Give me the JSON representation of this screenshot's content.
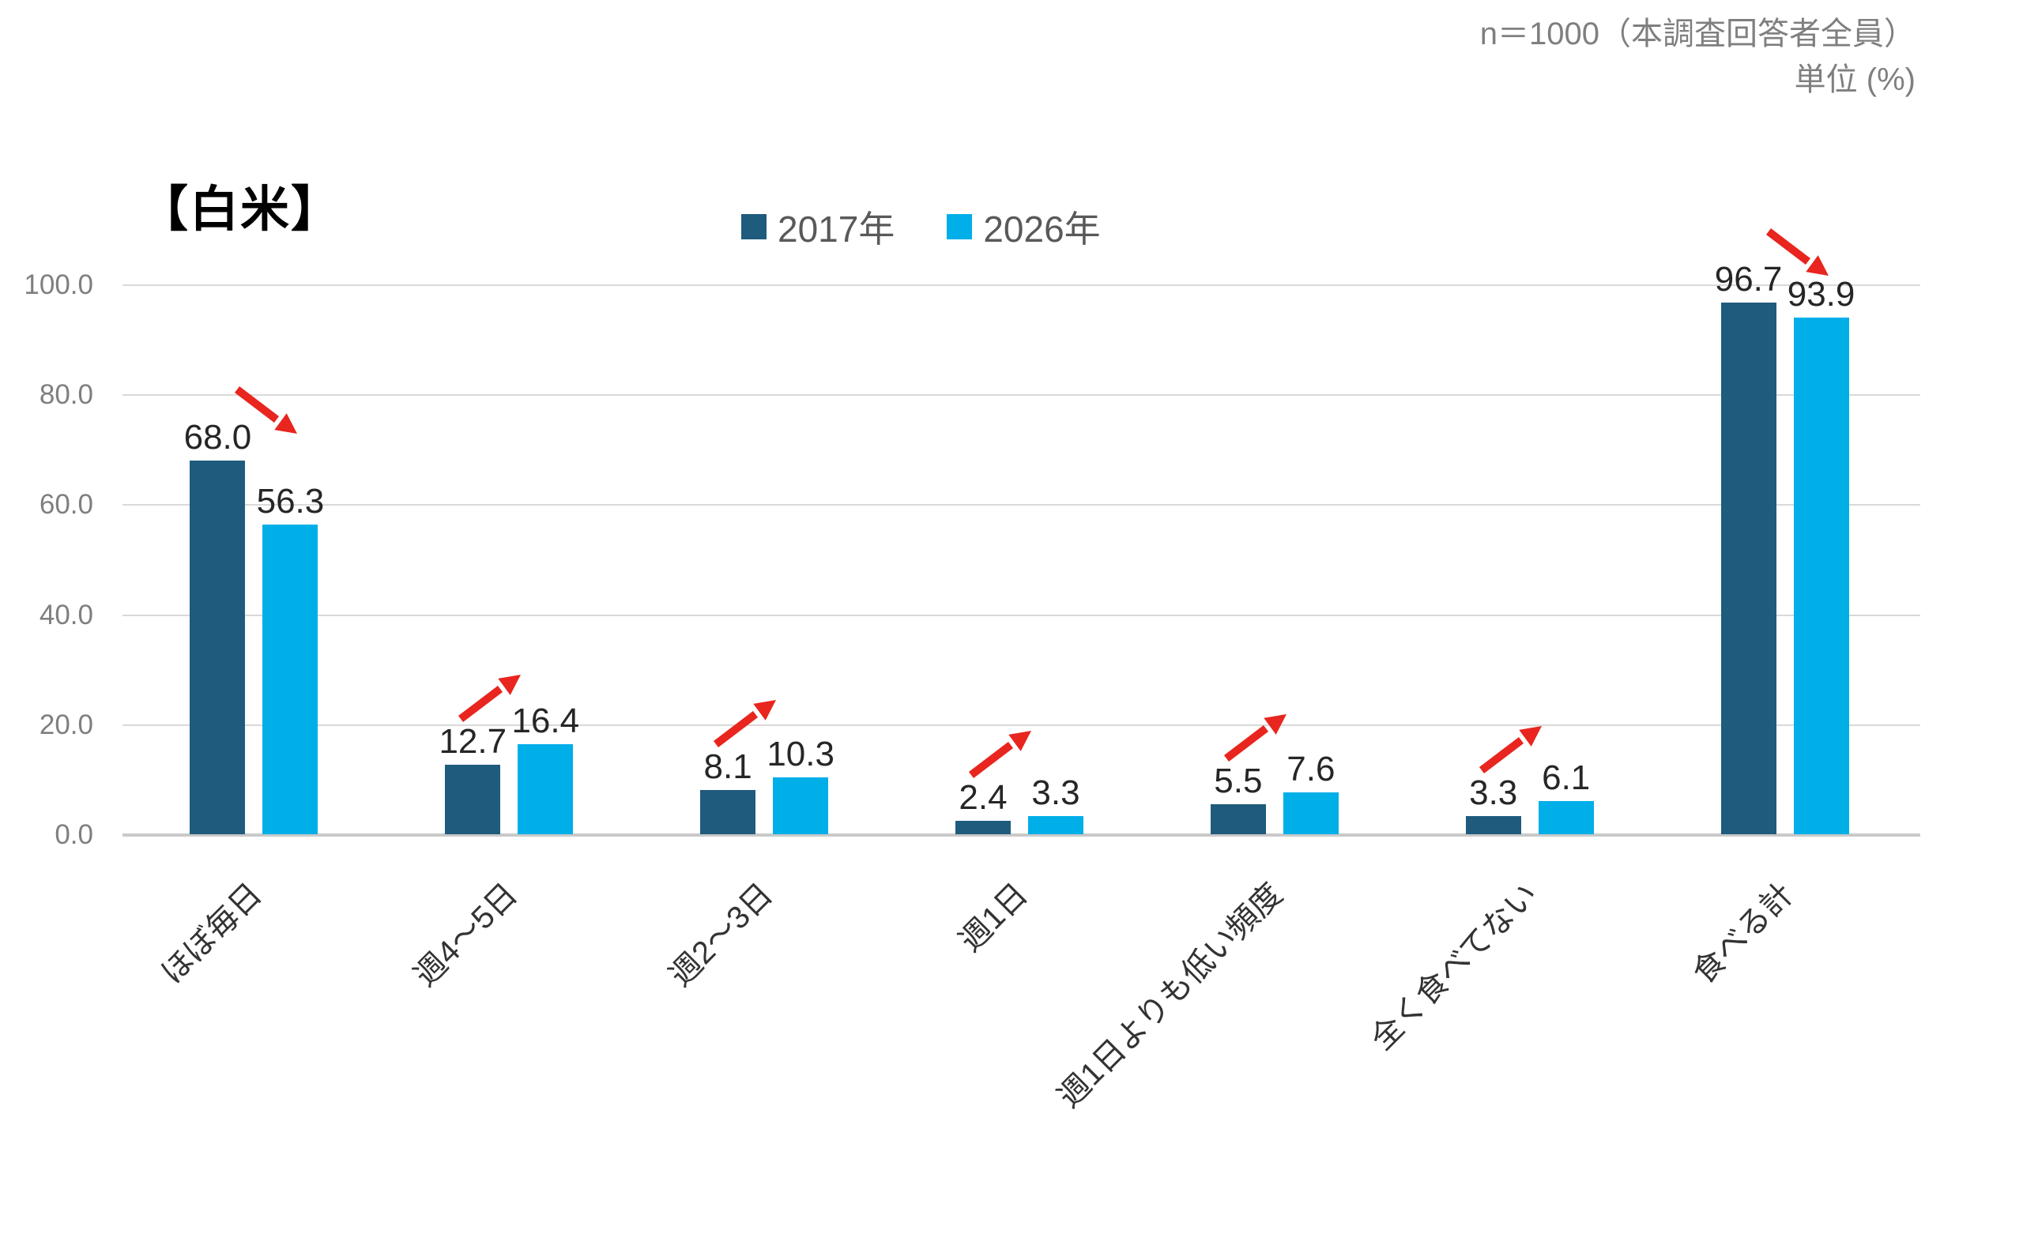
{
  "note": {
    "line1": "n＝1000（本調査回答者全員）",
    "line2": "単位 (%)"
  },
  "chart_data": {
    "type": "bar",
    "title": "【白米】",
    "sample_note": "n＝1000（本調査回答者全員）",
    "unit_label": "単位 (%)",
    "categories": [
      "ほぼ毎日",
      "週4～5日",
      "週2～3日",
      "週1日",
      "週1日よりも低い頻度",
      "全く食べてない",
      "食べる計"
    ],
    "series": [
      {
        "name": "2017年",
        "color": "#1E5B7D",
        "values": [
          68.0,
          12.7,
          8.1,
          2.4,
          5.5,
          3.3,
          96.7
        ]
      },
      {
        "name": "2026年",
        "color": "#00AEE8",
        "values": [
          56.3,
          16.4,
          10.3,
          3.3,
          7.6,
          6.1,
          93.9
        ]
      }
    ],
    "trend_arrows": [
      "down",
      "up",
      "up",
      "up",
      "up",
      "up",
      "down"
    ],
    "arrow_color": "#E8251E",
    "yticks": [
      0,
      20,
      40,
      60,
      80,
      100
    ],
    "ytick_labels": [
      "0.0",
      "20.0",
      "40.0",
      "60.0",
      "80.0",
      "100.0"
    ],
    "ylim": [
      0,
      100
    ],
    "grid": true,
    "legend_position": "top-center",
    "value_label_decimals": 1,
    "colors": {
      "grid": "#D9D9D9",
      "axis_text": "#7F7F7F",
      "value_text": "#262626",
      "legend_text": "#595959",
      "title_text": "#000000"
    }
  }
}
